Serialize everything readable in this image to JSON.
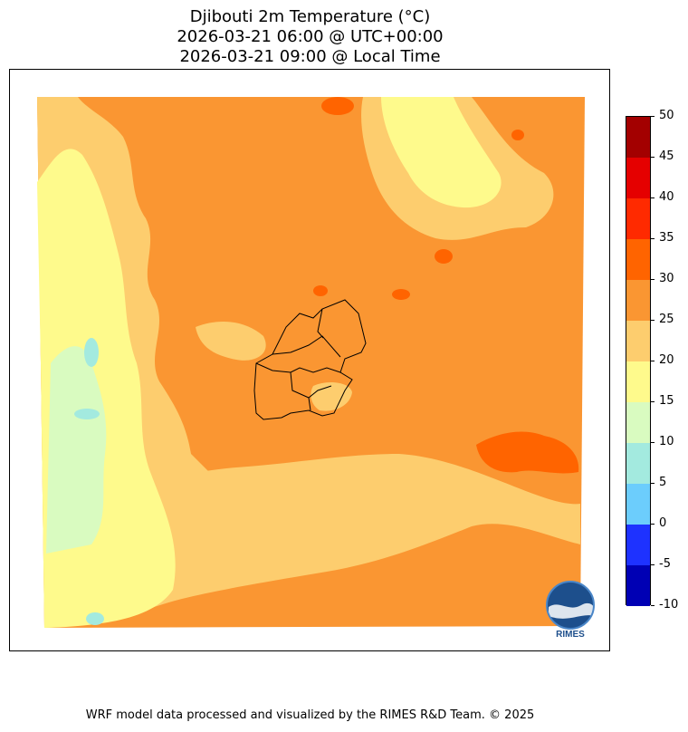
{
  "title": {
    "line1": "Djibouti 2m Temperature (°C)",
    "line2": "2026-03-21 06:00 @ UTC+00:00",
    "line3": "2026-03-21 09:00 @ Local Time"
  },
  "colorbar": {
    "ticks": [
      "50",
      "45",
      "40",
      "35",
      "30",
      "25",
      "20",
      "15",
      "10",
      "5",
      "0",
      "-5",
      "-10"
    ],
    "levels": [
      {
        "from": 45,
        "to": 50,
        "color": "#a30000"
      },
      {
        "from": 40,
        "to": 45,
        "color": "#e50000"
      },
      {
        "from": 35,
        "to": 40,
        "color": "#ff2a00"
      },
      {
        "from": 30,
        "to": 35,
        "color": "#ff6400"
      },
      {
        "from": 25,
        "to": 30,
        "color": "#fa9632"
      },
      {
        "from": 20,
        "to": 25,
        "color": "#fdcd6e"
      },
      {
        "from": 15,
        "to": 20,
        "color": "#fefa8c"
      },
      {
        "from": 10,
        "to": 15,
        "color": "#d9fbc0"
      },
      {
        "from": 5,
        "to": 10,
        "color": "#a3eadf"
      },
      {
        "from": 0,
        "to": 5,
        "color": "#6ccdfc"
      },
      {
        "from": -5,
        "to": 0,
        "color": "#1e32ff"
      },
      {
        "from": -10,
        "to": -5,
        "color": "#0000b4"
      }
    ]
  },
  "logo": {
    "text": "RIMES"
  },
  "footer": "WRF model data processed and visualized by the RIMES R&D Team. © 2025"
}
